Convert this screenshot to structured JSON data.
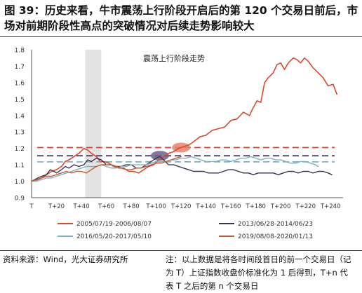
{
  "figure": {
    "title": "图 39：历史来看，牛市震荡上行阶段开启后的第 120 个交易日前后，市场对前期阶段性高点的突破情况对后续走势影响较大",
    "source": "资料来源：Wind，光大证券研究所",
    "note": "注：以上数据是将各时间段首日的前一个交易日（记为 T）上证指数收盘价标准化为 1 后得到，T+n 代表 T 之后的第 n 个交易日"
  },
  "chart_data": {
    "type": "line",
    "title": "震荡上行阶段走势",
    "xlabel": "",
    "ylabel": "",
    "ylim": [
      0.9,
      1.8
    ],
    "xlim": [
      0,
      250
    ],
    "y_ticks": [
      0.9,
      1.0,
      1.1,
      1.2,
      1.3,
      1.4,
      1.5,
      1.6,
      1.7,
      1.8
    ],
    "x_ticks": [
      {
        "v": 0,
        "label": "T"
      },
      {
        "v": 20,
        "label": "T+20"
      },
      {
        "v": 40,
        "label": "T+40"
      },
      {
        "v": 60,
        "label": "T+60"
      },
      {
        "v": 80,
        "label": "T+80"
      },
      {
        "v": 100,
        "label": "T+100"
      },
      {
        "v": 120,
        "label": "T+120"
      },
      {
        "v": 140,
        "label": "T+140"
      },
      {
        "v": 160,
        "label": "T+160"
      },
      {
        "v": 180,
        "label": "T+180"
      },
      {
        "v": 200,
        "label": "T+200"
      },
      {
        "v": 220,
        "label": "T+220"
      },
      {
        "v": 240,
        "label": "T+240"
      }
    ],
    "grid": false,
    "legend_position": "bottom",
    "shaded_band": {
      "x0": 43,
      "x1": 56,
      "color": "#d9d9d9"
    },
    "reference_lines": [
      {
        "y": 1.205,
        "color": "#d94a2b",
        "dash": true
      },
      {
        "y": 1.155,
        "color": "#3d3252",
        "dash": true
      },
      {
        "y": 1.118,
        "color": "#7fb0c4",
        "dash": true
      }
    ],
    "highlights": [
      {
        "x": 120,
        "y": 1.205,
        "color": "#e8836f"
      },
      {
        "x": 103,
        "y": 1.155,
        "color": "#6b5f88"
      }
    ],
    "series": [
      {
        "name": "2005/07/19-2006/08/07",
        "color": "#d94a2b",
        "width": 1.6,
        "points": [
          [
            0,
            1.0
          ],
          [
            5,
            1.01
          ],
          [
            8,
            1.02
          ],
          [
            12,
            1.04
          ],
          [
            16,
            1.06
          ],
          [
            20,
            1.07
          ],
          [
            24,
            1.09
          ],
          [
            27,
            1.12
          ],
          [
            30,
            1.13
          ],
          [
            34,
            1.15
          ],
          [
            38,
            1.17
          ],
          [
            42,
            1.2
          ],
          [
            45,
            1.19
          ],
          [
            48,
            1.17
          ],
          [
            52,
            1.15
          ],
          [
            55,
            1.12
          ],
          [
            58,
            1.12
          ],
          [
            62,
            1.11
          ],
          [
            66,
            1.09
          ],
          [
            70,
            1.08
          ],
          [
            74,
            1.08
          ],
          [
            78,
            1.06
          ],
          [
            82,
            1.06
          ],
          [
            86,
            1.05
          ],
          [
            90,
            1.07
          ],
          [
            94,
            1.09
          ],
          [
            98,
            1.1
          ],
          [
            102,
            1.13
          ],
          [
            106,
            1.15
          ],
          [
            110,
            1.17
          ],
          [
            114,
            1.18
          ],
          [
            118,
            1.2
          ],
          [
            122,
            1.21
          ],
          [
            126,
            1.22
          ],
          [
            130,
            1.24
          ],
          [
            135,
            1.27
          ],
          [
            140,
            1.28
          ],
          [
            145,
            1.31
          ],
          [
            150,
            1.32
          ],
          [
            155,
            1.33
          ],
          [
            160,
            1.37
          ],
          [
            165,
            1.38
          ],
          [
            170,
            1.42
          ],
          [
            175,
            1.4
          ],
          [
            178,
            1.45
          ],
          [
            181,
            1.49
          ],
          [
            184,
            1.48
          ],
          [
            187,
            1.6
          ],
          [
            190,
            1.63
          ],
          [
            194,
            1.66
          ],
          [
            197,
            1.71
          ],
          [
            200,
            1.72
          ],
          [
            203,
            1.68
          ],
          [
            206,
            1.72
          ],
          [
            210,
            1.75
          ],
          [
            213,
            1.74
          ],
          [
            216,
            1.72
          ],
          [
            219,
            1.75
          ],
          [
            222,
            1.73
          ],
          [
            226,
            1.69
          ],
          [
            230,
            1.66
          ],
          [
            234,
            1.63
          ],
          [
            238,
            1.58
          ],
          [
            242,
            1.59
          ],
          [
            245,
            1.53
          ]
        ]
      },
      {
        "name": "2013/06/28-2014/06/23",
        "color": "#3d3252",
        "width": 1.4,
        "points": [
          [
            0,
            1.0
          ],
          [
            5,
            1.02
          ],
          [
            8,
            1.03
          ],
          [
            12,
            1.04
          ],
          [
            15,
            1.07
          ],
          [
            18,
            1.06
          ],
          [
            20,
            1.05
          ],
          [
            24,
            1.07
          ],
          [
            27,
            1.09
          ],
          [
            30,
            1.08
          ],
          [
            34,
            1.1
          ],
          [
            38,
            1.09
          ],
          [
            42,
            1.1
          ],
          [
            45,
            1.13
          ],
          [
            48,
            1.12
          ],
          [
            52,
            1.14
          ],
          [
            56,
            1.13
          ],
          [
            60,
            1.1
          ],
          [
            64,
            1.1
          ],
          [
            68,
            1.09
          ],
          [
            72,
            1.09
          ],
          [
            76,
            1.1
          ],
          [
            80,
            1.1
          ],
          [
            84,
            1.08
          ],
          [
            88,
            1.08
          ],
          [
            92,
            1.1
          ],
          [
            96,
            1.12
          ],
          [
            100,
            1.14
          ],
          [
            103,
            1.15
          ],
          [
            106,
            1.13
          ],
          [
            110,
            1.1
          ],
          [
            114,
            1.1
          ],
          [
            118,
            1.09
          ],
          [
            122,
            1.08
          ],
          [
            126,
            1.07
          ],
          [
            130,
            1.06
          ],
          [
            134,
            1.06
          ],
          [
            138,
            1.06
          ],
          [
            142,
            1.05
          ],
          [
            146,
            1.05
          ],
          [
            150,
            1.05
          ],
          [
            154,
            1.06
          ],
          [
            158,
            1.07
          ],
          [
            162,
            1.07
          ],
          [
            166,
            1.06
          ],
          [
            170,
            1.05
          ],
          [
            174,
            1.05
          ],
          [
            178,
            1.04
          ],
          [
            182,
            1.05
          ],
          [
            186,
            1.05
          ],
          [
            190,
            1.05
          ],
          [
            194,
            1.05
          ],
          [
            198,
            1.04
          ],
          [
            202,
            1.05
          ],
          [
            206,
            1.06
          ],
          [
            210,
            1.06
          ],
          [
            214,
            1.05
          ],
          [
            218,
            1.06
          ],
          [
            222,
            1.06
          ],
          [
            226,
            1.05
          ],
          [
            230,
            1.06
          ],
          [
            234,
            1.06
          ],
          [
            238,
            1.05
          ],
          [
            241,
            1.04
          ]
        ]
      },
      {
        "name": "2016/05/20-2017/05/10",
        "color": "#7fb0c4",
        "width": 1.4,
        "points": [
          [
            0,
            1.0
          ],
          [
            4,
            1.0
          ],
          [
            8,
            1.01
          ],
          [
            12,
            1.02
          ],
          [
            16,
            1.02
          ],
          [
            20,
            1.03
          ],
          [
            24,
            1.04
          ],
          [
            28,
            1.05
          ],
          [
            32,
            1.06
          ],
          [
            36,
            1.07
          ],
          [
            40,
            1.08
          ],
          [
            44,
            1.09
          ],
          [
            48,
            1.09
          ],
          [
            52,
            1.09
          ],
          [
            56,
            1.1
          ],
          [
            60,
            1.09
          ],
          [
            64,
            1.08
          ],
          [
            68,
            1.08
          ],
          [
            72,
            1.09
          ],
          [
            76,
            1.09
          ],
          [
            80,
            1.1
          ],
          [
            84,
            1.1
          ],
          [
            88,
            1.1
          ],
          [
            92,
            1.1
          ],
          [
            96,
            1.11
          ],
          [
            100,
            1.12
          ],
          [
            104,
            1.12
          ],
          [
            108,
            1.12
          ],
          [
            112,
            1.13
          ],
          [
            116,
            1.13
          ],
          [
            120,
            1.14
          ],
          [
            124,
            1.14
          ],
          [
            128,
            1.15
          ],
          [
            132,
            1.14
          ],
          [
            136,
            1.13
          ],
          [
            140,
            1.12
          ],
          [
            144,
            1.12
          ],
          [
            148,
            1.12
          ],
          [
            152,
            1.13
          ],
          [
            156,
            1.13
          ],
          [
            160,
            1.12
          ],
          [
            164,
            1.13
          ],
          [
            168,
            1.14
          ],
          [
            172,
            1.14
          ],
          [
            176,
            1.15
          ],
          [
            180,
            1.14
          ],
          [
            184,
            1.13
          ],
          [
            188,
            1.14
          ],
          [
            192,
            1.14
          ],
          [
            196,
            1.13
          ],
          [
            200,
            1.13
          ],
          [
            204,
            1.12
          ],
          [
            208,
            1.11
          ],
          [
            212,
            1.11
          ],
          [
            216,
            1.12
          ],
          [
            220,
            1.12
          ],
          [
            224,
            1.11
          ],
          [
            228,
            1.1
          ],
          [
            230,
            1.09
          ]
        ]
      },
      {
        "name": "2019/08/08-2020/01/13",
        "color": "#bd5c32",
        "width": 1.4,
        "points": [
          [
            0,
            1.0
          ],
          [
            4,
            1.01
          ],
          [
            8,
            1.02
          ],
          [
            12,
            1.03
          ],
          [
            16,
            1.03
          ],
          [
            20,
            1.04
          ],
          [
            24,
            1.05
          ],
          [
            28,
            1.06
          ],
          [
            32,
            1.05
          ],
          [
            36,
            1.06
          ],
          [
            40,
            1.06
          ],
          [
            44,
            1.05
          ],
          [
            48,
            1.07
          ],
          [
            52,
            1.09
          ],
          [
            56,
            1.1
          ],
          [
            60,
            1.1
          ],
          [
            64,
            1.1
          ],
          [
            68,
            1.09
          ],
          [
            72,
            1.08
          ],
          [
            76,
            1.07
          ],
          [
            80,
            1.07
          ],
          [
            84,
            1.08
          ],
          [
            88,
            1.08
          ],
          [
            92,
            1.09
          ],
          [
            96,
            1.1
          ],
          [
            100,
            1.11
          ],
          [
            104,
            1.11
          ],
          [
            108,
            1.12
          ],
          [
            112,
            1.13
          ],
          [
            116,
            1.14
          ],
          [
            120,
            1.15
          ]
        ]
      }
    ]
  }
}
